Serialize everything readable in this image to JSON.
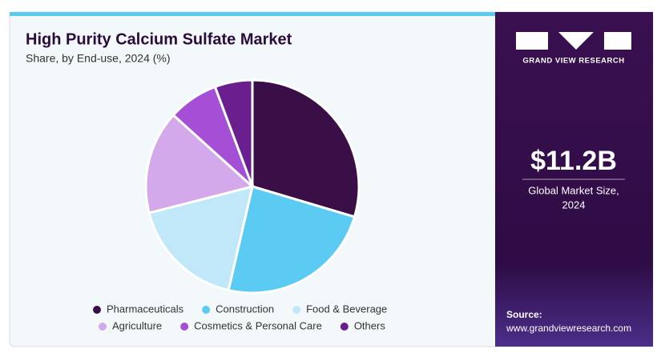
{
  "chart_data": {
    "type": "pie",
    "title": "High Purity Calcium Sulfate Market",
    "subtitle": "Share, by End-use, 2024 (%)",
    "categories": [
      "Pharmaceuticals",
      "Construction",
      "Food & Beverage",
      "Agriculture",
      "Cosmetics & Personal Care",
      "Others"
    ],
    "values": [
      29.6,
      24.0,
      17.4,
      15.7,
      7.6,
      5.7
    ],
    "colors": [
      "#3a0f48",
      "#5ccbf4",
      "#c0e8f8",
      "#d4a9ec",
      "#a44fd6",
      "#6b1f8e"
    ]
  },
  "sidebar": {
    "brand": "GRAND VIEW RESEARCH",
    "market_size": "$11.2B",
    "market_size_caption": [
      "Global Market Size,",
      "2024"
    ],
    "source_label": "Source:",
    "source_url": "www.grandviewresearch.com"
  }
}
